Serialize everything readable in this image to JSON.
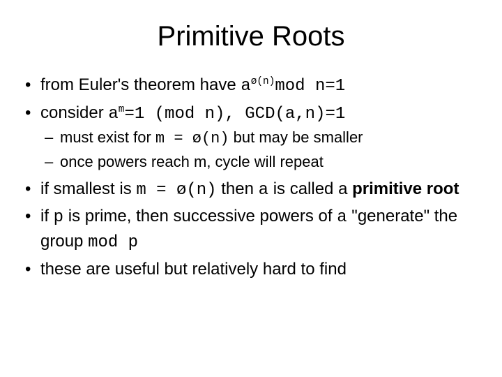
{
  "title": "Primitive Roots",
  "b1_pre": "from Euler's theorem have ",
  "b1_code1": "a",
  "b1_sup": "ø(n)",
  "b1_code2": "mod n=1",
  "b2_pre": "consider ",
  "b2_code1": "a",
  "b2_sup": "m",
  "b2_code2": "=1 (mod n), GCD(a,n)=1",
  "s1_pre": "must exist for ",
  "s1_code": "m = ø(n)",
  "s1_post": " but may be smaller",
  "s2": "once powers reach m, cycle will repeat",
  "b3_pre": "if smallest is ",
  "b3_code1": "m = ø(n)",
  "b3_mid": " then ",
  "b3_code2": "a",
  "b3_post1": " is called a ",
  "b3_bold": "primitive root",
  "b4_pre": "if ",
  "b4_code1": "p",
  "b4_mid1": " is prime, then successive powers of ",
  "b4_code2": "a",
  "b4_mid2": " \"generate\" the group ",
  "b4_code3": "mod p",
  "b5": "these are useful but relatively hard to find"
}
